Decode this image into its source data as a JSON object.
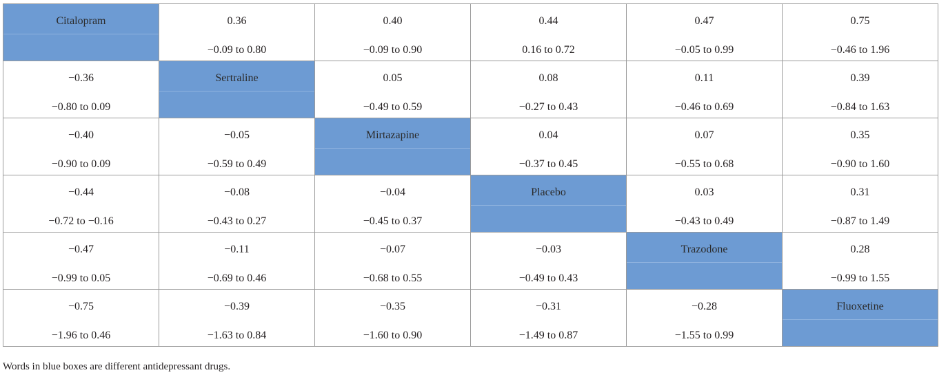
{
  "diagonal_labels": [
    "Citalopram",
    "Sertraline",
    "Mirtazapine",
    "Placebo",
    "Trazodone",
    "Fluoxetine"
  ],
  "rows": [
    [
      {
        "drug": "Citalopram"
      },
      {
        "est": "0.36",
        "ci": "−0.09 to 0.80"
      },
      {
        "est": "0.40",
        "ci": "−0.09 to 0.90"
      },
      {
        "est": "0.44",
        "ci": "0.16 to 0.72"
      },
      {
        "est": "0.47",
        "ci": "−0.05 to 0.99"
      },
      {
        "est": "0.75",
        "ci": "−0.46 to 1.96"
      }
    ],
    [
      {
        "est": "−0.36",
        "ci": "−0.80 to 0.09"
      },
      {
        "drug": "Sertraline"
      },
      {
        "est": "0.05",
        "ci": "−0.49 to 0.59"
      },
      {
        "est": "0.08",
        "ci": "−0.27 to 0.43"
      },
      {
        "est": "0.11",
        "ci": "−0.46 to 0.69"
      },
      {
        "est": "0.39",
        "ci": "−0.84 to 1.63"
      }
    ],
    [
      {
        "est": "−0.40",
        "ci": "−0.90 to 0.09"
      },
      {
        "est": "−0.05",
        "ci": "−0.59 to 0.49"
      },
      {
        "drug": "Mirtazapine"
      },
      {
        "est": "0.04",
        "ci": "−0.37 to 0.45"
      },
      {
        "est": "0.07",
        "ci": "−0.55 to 0.68"
      },
      {
        "est": "0.35",
        "ci": "−0.90 to 1.60"
      }
    ],
    [
      {
        "est": "−0.44",
        "ci": "−0.72 to −0.16"
      },
      {
        "est": "−0.08",
        "ci": "−0.43 to 0.27"
      },
      {
        "est": "−0.04",
        "ci": "−0.45 to 0.37"
      },
      {
        "drug": "Placebo"
      },
      {
        "est": "0.03",
        "ci": "−0.43 to 0.49"
      },
      {
        "est": "0.31",
        "ci": "−0.87 to 1.49"
      }
    ],
    [
      {
        "est": "−0.47",
        "ci": "−0.99 to 0.05"
      },
      {
        "est": "−0.11",
        "ci": "−0.69 to 0.46"
      },
      {
        "est": "−0.07",
        "ci": "−0.68 to 0.55"
      },
      {
        "est": "−0.03",
        "ci": "−0.49 to 0.43"
      },
      {
        "drug": "Trazodone"
      },
      {
        "est": "0.28",
        "ci": "−0.99 to 1.55"
      }
    ],
    [
      {
        "est": "−0.75",
        "ci": "−1.96 to 0.46"
      },
      {
        "est": "−0.39",
        "ci": "−1.63 to 0.84"
      },
      {
        "est": "−0.35",
        "ci": "−1.60 to 0.90"
      },
      {
        "est": "−0.31",
        "ci": "−1.49 to 0.87"
      },
      {
        "est": "−0.28",
        "ci": "−1.55 to 0.99"
      },
      {
        "drug": "Fluoxetine"
      }
    ]
  ],
  "footnote": "Words in blue boxes are different antidepressant drugs.",
  "colors": {
    "diagonal_fill": "#6d9bd3",
    "border": "#9a9a9a",
    "text": "#231f20"
  }
}
